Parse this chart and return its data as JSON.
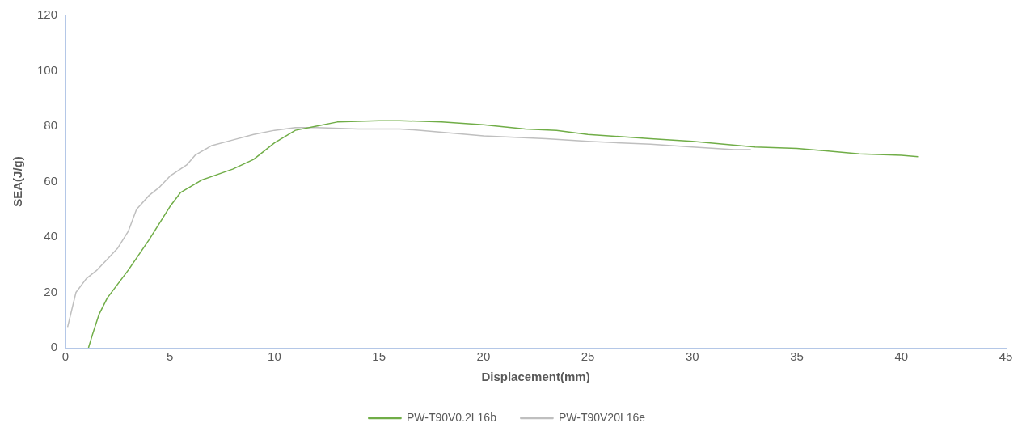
{
  "chart_data": {
    "type": "line",
    "xlabel": "Displacement(mm)",
    "ylabel": "SEA(J/g)",
    "xlim": [
      0,
      45
    ],
    "xticks": [
      0,
      5,
      10,
      15,
      20,
      25,
      30,
      35,
      40,
      45
    ],
    "ylim": [
      0,
      120
    ],
    "yticks": [
      0,
      20,
      40,
      60,
      80,
      100,
      120
    ],
    "grid": false,
    "legend": "bottom",
    "marker": "none",
    "line_style": "solid",
    "series": [
      {
        "name": "PW-T90V0.2L16b",
        "color": "#70ad47",
        "x": [
          1.1,
          1.3,
          1.6,
          2,
          3,
          4,
          5,
          5.5,
          6.5,
          8,
          9,
          10,
          11,
          12,
          13,
          15,
          16,
          18,
          20,
          22,
          23.5,
          25,
          28,
          30,
          33,
          35,
          38,
          40,
          40.8
        ],
        "values": [
          0,
          5,
          12,
          18,
          28,
          39,
          51,
          56,
          60.5,
          64.5,
          68,
          74,
          78.5,
          80,
          81.5,
          82,
          82,
          81.5,
          80.5,
          79,
          78.5,
          77,
          75.5,
          74.5,
          72.5,
          72,
          70,
          69.5,
          69
        ]
      },
      {
        "name": "PW-T90V20L16e",
        "color": "#bfbfbf",
        "x": [
          0.1,
          0.5,
          1,
          1.5,
          2,
          2.5,
          3,
          3.4,
          4,
          4.5,
          5,
          5.8,
          6.2,
          7,
          8,
          9,
          10,
          11,
          12,
          14,
          16,
          17,
          20,
          23,
          25,
          28,
          30,
          32,
          32.8
        ],
        "values": [
          7.5,
          20,
          25,
          28,
          32,
          36,
          42,
          50,
          55,
          58,
          62,
          66,
          69.5,
          73,
          75,
          77,
          78.5,
          79.5,
          79.5,
          79,
          79,
          78.5,
          76.5,
          75.5,
          74.5,
          73.5,
          72.5,
          71.5,
          71.5
        ]
      }
    ]
  }
}
